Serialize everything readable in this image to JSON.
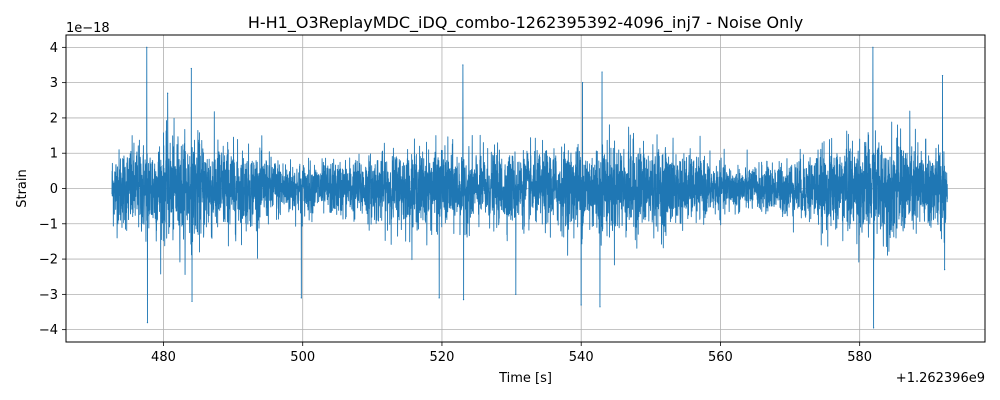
{
  "chart_data": {
    "type": "line",
    "title": "H-H1_O3ReplayMDC_iDQ_combo-1262395392-4096_inj7 - Noise Only",
    "xlabel": "Time [s]",
    "ylabel": "Strain",
    "x_offset_text": "+1.262396e9",
    "y_offset_text": "1e−18",
    "xlim": [
      466.0,
      598.0
    ],
    "ylim": [
      -4.35,
      4.35
    ],
    "x_ticks": [
      480,
      500,
      520,
      540,
      560,
      580
    ],
    "x_tick_labels": [
      "480",
      "500",
      "520",
      "540",
      "560",
      "580"
    ],
    "y_ticks": [
      -4,
      -3,
      -2,
      -1,
      0,
      1,
      2,
      3,
      4
    ],
    "y_tick_labels": [
      "−4",
      "−3",
      "−2",
      "−1",
      "0",
      "1",
      "2",
      "3",
      "4"
    ],
    "grid": true,
    "line_color": "#1f77b4",
    "series": [
      {
        "x_range": [
          472.6,
          592.6
        ],
        "typical_amplitude": 0.6,
        "peaks": [
          {
            "x": 477.6,
            "y": 4.0
          },
          {
            "x": 477.7,
            "y": -3.8
          },
          {
            "x": 484.0,
            "y": 3.4
          },
          {
            "x": 484.1,
            "y": -3.2
          },
          {
            "x": 480.6,
            "y": 2.7
          },
          {
            "x": 499.8,
            "y": -3.1
          },
          {
            "x": 523.0,
            "y": 3.5
          },
          {
            "x": 523.1,
            "y": -3.15
          },
          {
            "x": 519.6,
            "y": -3.1
          },
          {
            "x": 530.6,
            "y": -3.0
          },
          {
            "x": 540.0,
            "y": -3.3
          },
          {
            "x": 540.2,
            "y": 3.0
          },
          {
            "x": 542.7,
            "y": -3.35
          },
          {
            "x": 543.0,
            "y": 3.3
          },
          {
            "x": 581.9,
            "y": 4.0
          },
          {
            "x": 582.0,
            "y": -3.95
          },
          {
            "x": 591.9,
            "y": 3.2
          },
          {
            "x": 592.2,
            "y": -2.3
          }
        ]
      }
    ]
  }
}
